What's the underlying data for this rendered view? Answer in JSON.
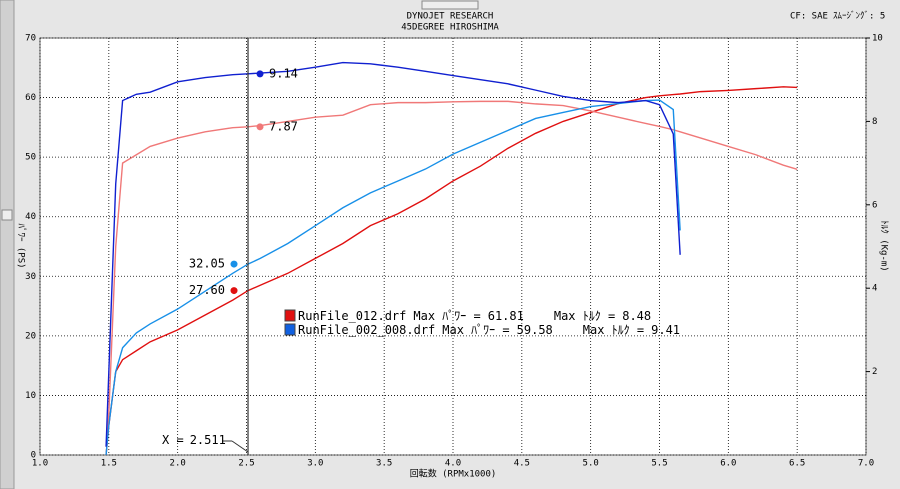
{
  "chart_data": {
    "type": "line",
    "title": "DYNOJET RESEARCH",
    "subtitle": "45DEGREE HIROSHIMA",
    "correction": "CF: SAE",
    "smoothing": "ｽﾑｰｼﾞﾝｸﾞ: 5",
    "xlabel": "回転数 (RPMx1000)",
    "ylabel": "ﾊﾟﾜｰ (PS)",
    "y2label": "ﾄﾙｸ (Kg-m)",
    "xlim": [
      1.0,
      7.0
    ],
    "xticks": [
      {
        "value": 1,
        "label": "1.0"
      },
      1.5,
      {
        "value": 2,
        "label": "2.0"
      },
      2.5,
      {
        "value": 3,
        "label": "3.0"
      },
      3.5,
      {
        "value": 4,
        "label": "4.0"
      },
      4.5,
      {
        "value": 5,
        "label": "5.0"
      },
      5.5,
      {
        "value": 6,
        "label": "6.0"
      },
      6.5,
      {
        "value": 7,
        "label": "7.0"
      }
    ],
    "ylim": [
      0,
      70
    ],
    "yticks": [
      0,
      10,
      20,
      30,
      40,
      50,
      60,
      70
    ],
    "y2lim": [
      0,
      10
    ],
    "y2ticks": [
      2,
      4,
      6,
      8,
      10
    ],
    "grid": true,
    "x": [
      1.48,
      1.5,
      1.55,
      1.6,
      1.7,
      1.8,
      2.0,
      2.2,
      2.4,
      2.511,
      2.6,
      2.8,
      3.0,
      3.2,
      3.4,
      3.6,
      3.8,
      4.0,
      4.2,
      4.4,
      4.6,
      4.8,
      5.0,
      5.2,
      5.4,
      5.5,
      5.6,
      5.65,
      5.8,
      6.0,
      6.2,
      6.4,
      6.5
    ],
    "series": [
      {
        "color": "#e01010",
        "axis": "y",
        "values": [
          0,
          5,
          14,
          16,
          17.5,
          19,
          21,
          23.5,
          26,
          27.6,
          28.5,
          30.5,
          33,
          35.5,
          38.5,
          40.5,
          43,
          46,
          48.5,
          51.5,
          54,
          56,
          57.5,
          59,
          60,
          60.3,
          60.5,
          60.6,
          61,
          61.2,
          61.5,
          61.8,
          61.7
        ],
        "value_labels": [
          null,
          null,
          null,
          null,
          null,
          null,
          null,
          null,
          null,
          "27.60",
          null,
          null,
          null,
          null,
          null,
          null,
          null,
          null,
          null,
          null,
          null,
          null,
          null,
          null,
          null,
          null,
          null,
          null,
          null,
          null,
          null,
          null,
          null
        ]
      },
      {
        "color": "#f07878",
        "axis": "y2",
        "values": [
          0.2,
          1,
          5,
          7.0,
          7.2,
          7.4,
          7.6,
          7.75,
          7.85,
          7.87,
          7.9,
          8.0,
          8.1,
          8.15,
          8.4,
          8.45,
          8.45,
          8.47,
          8.48,
          8.48,
          8.42,
          8.38,
          8.25,
          8.1,
          7.95,
          7.88,
          7.8,
          7.75,
          7.6,
          7.4,
          7.2,
          6.95,
          6.85
        ]
      },
      {
        "color": "#1890e8",
        "axis": "y",
        "values": [
          0,
          5,
          14,
          18,
          20.5,
          22,
          24.5,
          27.5,
          30.5,
          32.05,
          33,
          35.5,
          38.5,
          41.5,
          44,
          46,
          48,
          50.5,
          52.5,
          54.5,
          56.5,
          57.5,
          58.5,
          59,
          59.5,
          59.58,
          58,
          37.7,
          null,
          null,
          null,
          null,
          null
        ]
      },
      {
        "color": "#1020d0",
        "axis": "y2",
        "values": [
          0.2,
          2,
          6.5,
          8.5,
          8.65,
          8.7,
          8.95,
          9.05,
          9.12,
          9.14,
          9.16,
          9.2,
          9.3,
          9.41,
          9.38,
          9.3,
          9.2,
          9.1,
          9.0,
          8.9,
          8.75,
          8.6,
          8.5,
          8.45,
          8.5,
          8.4,
          7.7,
          4.8,
          null,
          null,
          null,
          null,
          null
        ]
      }
    ],
    "cursor": {
      "label": "X =",
      "x": 2.511
    },
    "legend_power_text": "Max ﾊﾟﾜｰ =",
    "legend_torque_text": "Max ﾄﾙｸ =",
    "legend": [
      {
        "name": "RunFile_012.drf",
        "color": "#e01010",
        "max_power": 61.81,
        "max_torque": 8.48
      },
      {
        "name": "RunFile_002_008.drf",
        "color": "#1060e0",
        "max_power": 59.58,
        "max_torque": 9.41
      }
    ]
  }
}
